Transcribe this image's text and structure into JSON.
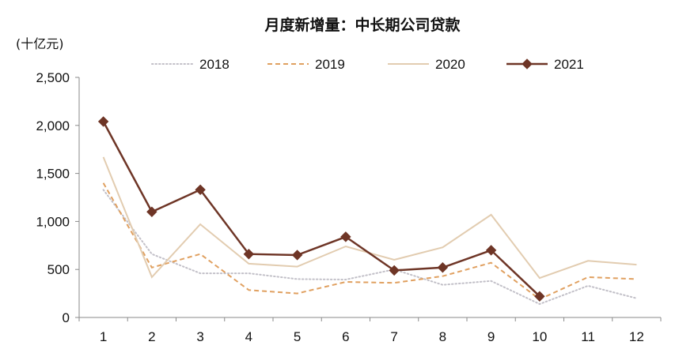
{
  "chart_data": {
    "type": "line",
    "title": "月度新增量：中长期公司贷款",
    "ylabel": "(十亿元)",
    "xlabel": "",
    "categories": [
      "1",
      "2",
      "3",
      "4",
      "5",
      "6",
      "7",
      "8",
      "9",
      "10",
      "11",
      "12"
    ],
    "ylim": [
      0,
      2500
    ],
    "yticks": [
      0,
      500,
      1000,
      1500,
      2000,
      2500
    ],
    "ytick_labels": [
      "0",
      "500",
      "1,000",
      "1,500",
      "2,000",
      "2,500"
    ],
    "series": [
      {
        "name": "2018",
        "color": "#c2c0c8",
        "style": "dotted",
        "values": [
          1330,
          660,
          460,
          460,
          400,
          395,
          500,
          340,
          380,
          140,
          330,
          200
        ]
      },
      {
        "name": "2019",
        "color": "#e0a060",
        "style": "dashed",
        "values": [
          1400,
          520,
          660,
          285,
          250,
          370,
          360,
          430,
          570,
          190,
          420,
          400
        ]
      },
      {
        "name": "2020",
        "color": "#e2ccb0",
        "style": "solid",
        "values": [
          1670,
          420,
          970,
          560,
          530,
          740,
          600,
          730,
          1070,
          410,
          590,
          550
        ]
      },
      {
        "name": "2021",
        "color": "#6e3526",
        "style": "solid-marker",
        "values": [
          2040,
          1100,
          1330,
          660,
          650,
          840,
          490,
          520,
          700,
          220,
          null,
          null
        ]
      }
    ],
    "legend_position": "top-center",
    "grid": false
  }
}
